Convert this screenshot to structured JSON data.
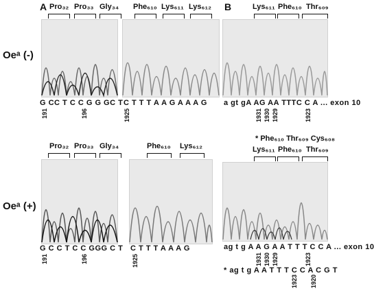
{
  "panels": {
    "a_letter": "A",
    "b_letter": "B"
  },
  "rows": {
    "top_label": "Oeᵃ (-)",
    "bottom_label": "Oeᵃ (+)"
  },
  "a_top": {
    "codons_left": [
      "Pro₃₂",
      "Pro₃₃",
      "Gly₃₄"
    ],
    "codons_right": [
      "Phe₆₁₀",
      "Lys₆₁₁",
      "Lys₆₁₂"
    ],
    "seq_left": "G CC T C C G G GC T",
    "seq_right": "C T T T A A G A A A G",
    "nums_left": [
      "191",
      "196"
    ],
    "nums_right": [
      "1925"
    ]
  },
  "a_bottom": {
    "codons_left": [
      "Pro₃₂",
      "Pro₃₃",
      "Gly₃₄"
    ],
    "codons_right": [
      "Phe₆₁₀",
      "Lys₆₁₂"
    ],
    "seq_left": "G C C T C C GGG C T",
    "seq_right": "C T T T A A A G",
    "nums_left": [
      "191",
      "196"
    ],
    "nums_right": [
      "1925"
    ]
  },
  "b_top": {
    "codons": [
      "Lys₆₁₁",
      "Phe₆₁₀",
      "Thr₆₀₉"
    ],
    "seq": "a gt gA AG AA TTTC C  A ... exon 10",
    "nums": [
      "1931",
      "1930",
      "1929",
      "1923"
    ]
  },
  "b_bottom": {
    "codons_top": "* Phe₆₁₀ Thr₆₀₉ Cys₆₀₈",
    "codons": [
      "Lys₆₁₁",
      "Phe₆₁₀",
      "Thr₆₀₉"
    ],
    "seq1": "ag t g A A G A A T T T C C  A ... exon 10",
    "seq2": "* ag t g A A T T T C C A C G T",
    "nums1": [
      "1931",
      "1930",
      "1929",
      "1923"
    ],
    "nums2": [
      "1923",
      "1920"
    ]
  }
}
